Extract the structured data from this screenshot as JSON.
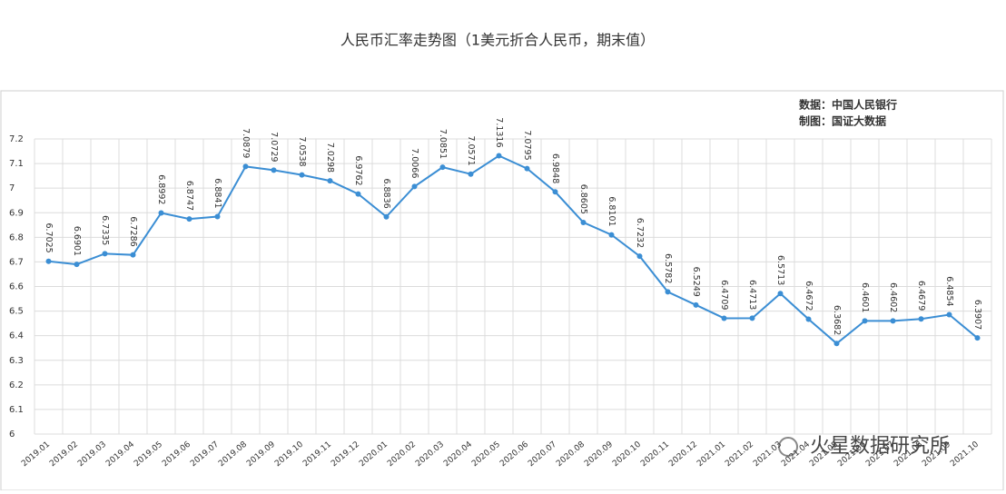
{
  "chart_data": {
    "type": "line",
    "title": "人民币汇率走势图（1美元折合人民币，期末值）",
    "source": "数据：中国人民银行",
    "credit": "制图：国证大数据",
    "watermark": "火星数据研究所",
    "categories": [
      "2019.01",
      "2019.02",
      "2019.03",
      "2019.04",
      "2019.05",
      "2019.06",
      "2019.07",
      "2019.08",
      "2019.09",
      "2019.10",
      "2019.11",
      "2019.12",
      "2020.01",
      "2020.02",
      "2020.03",
      "2020.04",
      "2020.05",
      "2020.06",
      "2020.07",
      "2020.08",
      "2020.09",
      "2020.10",
      "2020.11",
      "2020.12",
      "2021.01",
      "2021.02",
      "2021.03",
      "2021.04",
      "2021.05",
      "2021.06",
      "2021.07",
      "2021.08",
      "2021.09",
      "2021.10"
    ],
    "series": [
      {
        "name": "人民币汇率",
        "color": "#3b8ed4",
        "values": [
          6.7025,
          6.6901,
          6.7335,
          6.7286,
          6.8992,
          6.8747,
          6.8841,
          7.0879,
          7.0729,
          7.0538,
          7.0298,
          6.9762,
          6.8836,
          7.0066,
          7.0851,
          7.0571,
          7.1316,
          7.0795,
          6.9848,
          6.8605,
          6.8101,
          6.7232,
          6.5782,
          6.5249,
          6.4709,
          6.4713,
          6.5713,
          6.4672,
          6.3682,
          6.4601,
          6.4602,
          6.4679,
          6.4854,
          6.3907
        ]
      }
    ],
    "ylim": [
      6,
      7.2
    ],
    "yticks": [
      6,
      6.1,
      6.2,
      6.3,
      6.4,
      6.5,
      6.6,
      6.7,
      6.8,
      6.9,
      7,
      7.1,
      7.2
    ],
    "grid": true
  }
}
